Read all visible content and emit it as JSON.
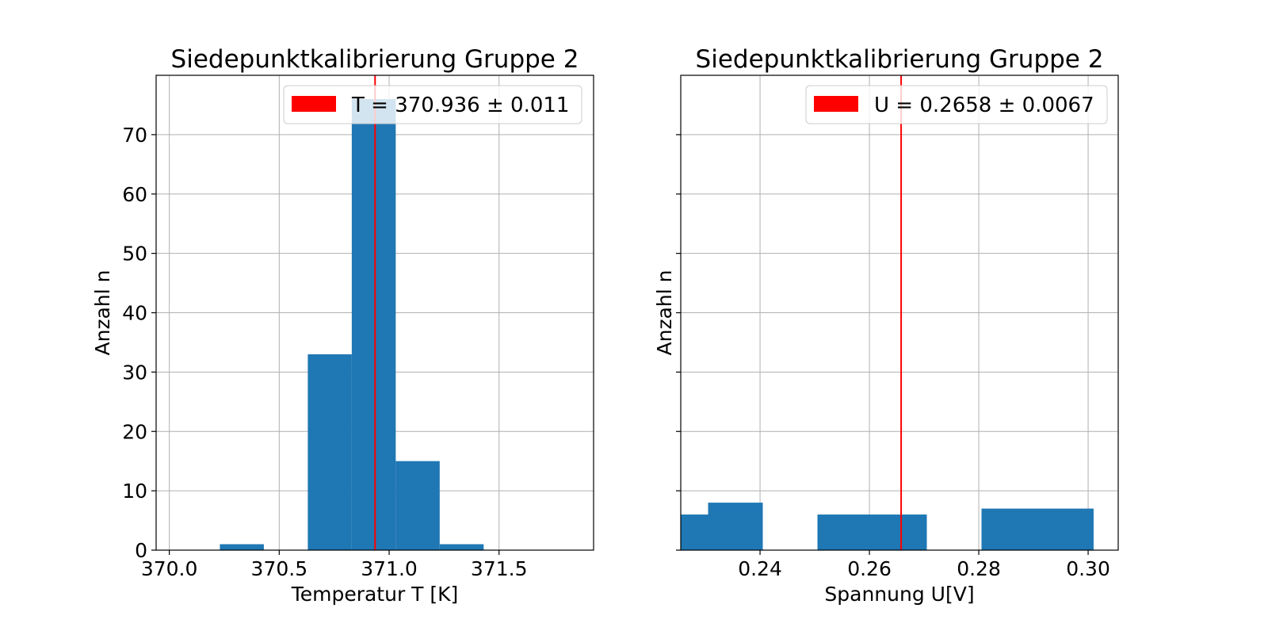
{
  "chart_data": [
    {
      "type": "bar",
      "title": "Siedepunktkalibrierung Gruppe 2",
      "xlabel": "Temperatur T [K]",
      "ylabel": "Anzahl n",
      "xlim": [
        369.94,
        371.93
      ],
      "ylim": [
        0,
        80
      ],
      "xticks": [
        370.0,
        370.5,
        371.0,
        371.5
      ],
      "xtick_labels": [
        "370.0",
        "370.5",
        "371.0",
        "371.5"
      ],
      "yticks": [
        0,
        10,
        20,
        30,
        40,
        50,
        60,
        70
      ],
      "ytick_labels": [
        "0",
        "10",
        "20",
        "30",
        "40",
        "50",
        "60",
        "70"
      ],
      "show_ytick_labels": true,
      "grid": true,
      "bins": [
        {
          "x0": 370.23,
          "x1": 370.43,
          "count": 1
        },
        {
          "x0": 370.43,
          "x1": 370.63,
          "count": 0
        },
        {
          "x0": 370.63,
          "x1": 370.83,
          "count": 33
        },
        {
          "x0": 370.83,
          "x1": 371.03,
          "count": 76
        },
        {
          "x0": 371.03,
          "x1": 371.23,
          "count": 15
        },
        {
          "x0": 371.23,
          "x1": 371.43,
          "count": 1
        }
      ],
      "bar_color": "#1f77b4",
      "vline": {
        "x": 370.936,
        "color": "#ff0000"
      },
      "legend": {
        "label": "T = 370.936 ± 0.011",
        "color": "#ff0000",
        "position": "top-right"
      }
    },
    {
      "type": "bar",
      "title": "Siedepunktkalibrierung Gruppe 2",
      "xlabel": "Spannung U[V]",
      "ylabel": "Anzahl n",
      "xlim": [
        0.2255,
        0.3055
      ],
      "ylim": [
        0,
        80
      ],
      "xticks": [
        0.24,
        0.26,
        0.28,
        0.3
      ],
      "xtick_labels": [
        "0.24",
        "0.26",
        "0.28",
        "0.30"
      ],
      "yticks": [
        0,
        10,
        20,
        30,
        40,
        50,
        60,
        70
      ],
      "ytick_labels": [],
      "show_ytick_labels": false,
      "grid": true,
      "bins": [
        {
          "x0": 0.2255,
          "x1": 0.2305,
          "count": 6
        },
        {
          "x0": 0.2305,
          "x1": 0.2405,
          "count": 8
        },
        {
          "x0": 0.2405,
          "x1": 0.2505,
          "count": 0
        },
        {
          "x0": 0.2505,
          "x1": 0.2705,
          "count": 6
        },
        {
          "x0": 0.2705,
          "x1": 0.2805,
          "count": 0
        },
        {
          "x0": 0.2805,
          "x1": 0.301,
          "count": 7
        }
      ],
      "bar_color": "#1f77b4",
      "vline": {
        "x": 0.2658,
        "color": "#ff0000"
      },
      "legend": {
        "label": "U = 0.2658 ± 0.0067",
        "color": "#ff0000",
        "position": "top-right"
      }
    }
  ]
}
